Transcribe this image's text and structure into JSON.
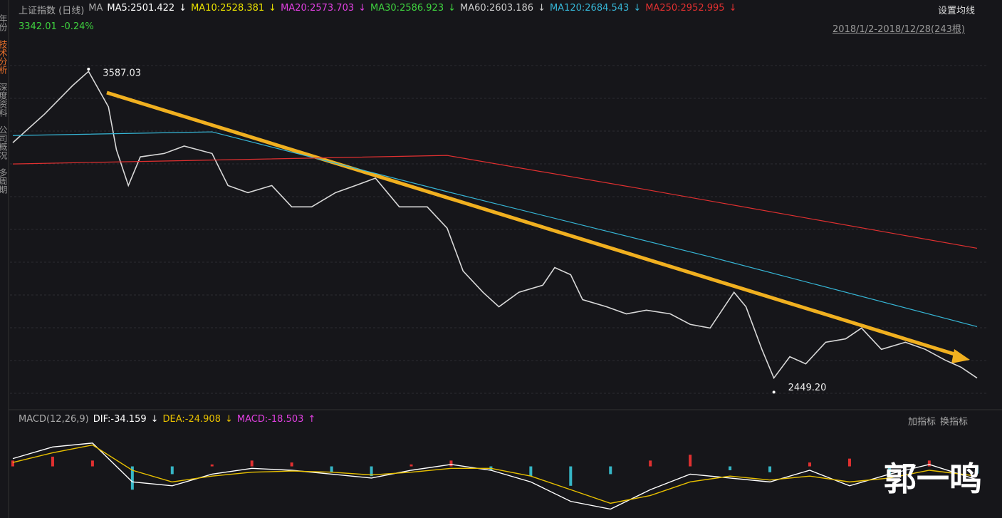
{
  "header": {
    "title": "上证指数 (日线)",
    "ma_label": "MA",
    "ma": [
      {
        "label": "MA5:2501.422",
        "arrow": "↓",
        "color": "#ffffff"
      },
      {
        "label": "MA10:2528.381",
        "arrow": "↓",
        "color": "#e8e000"
      },
      {
        "label": "MA20:2573.703",
        "arrow": "↓",
        "color": "#e040e0"
      },
      {
        "label": "MA30:2586.923",
        "arrow": "↓",
        "color": "#3fd23f"
      },
      {
        "label": "MA60:2603.186",
        "arrow": "↓",
        "color": "#cccccc"
      },
      {
        "label": "MA120:2684.543",
        "arrow": "↓",
        "color": "#36b6d6"
      },
      {
        "label": "MA250:2952.995",
        "arrow": "↓",
        "color": "#e03030"
      }
    ],
    "settings": "设置均线",
    "last": "3342.01",
    "change": "-0.24%",
    "range": "2018/1/2-2018/12/28(243根)"
  },
  "sidebar": [
    "年份",
    "技术分析",
    "深度资料",
    "公司概况",
    "多周期"
  ],
  "chart_data": [
    {
      "type": "line",
      "xlim": [
        0,
        242
      ],
      "ylim": [
        2400,
        3700
      ],
      "series": [
        {
          "color": "#d8d8d8",
          "x": [
            0,
            8,
            15,
            19,
            24,
            26,
            29,
            32,
            38,
            43,
            50,
            54,
            59,
            65,
            70,
            75,
            81,
            86,
            91,
            97,
            104,
            109,
            113,
            118,
            122,
            127,
            133,
            136,
            140,
            143,
            149,
            154,
            159,
            165,
            170,
            175,
            181,
            184,
            188,
            191,
            195,
            199,
            204,
            209,
            213,
            218,
            224,
            229,
            234,
            238,
            242
          ],
          "values": [
            3328,
            3429,
            3529,
            3579,
            3454,
            3303,
            3177,
            3278,
            3290,
            3316,
            3290,
            3177,
            3152,
            3177,
            3102,
            3102,
            3152,
            3177,
            3203,
            3102,
            3102,
            3027,
            2876,
            2801,
            2750,
            2801,
            2826,
            2888,
            2863,
            2775,
            2750,
            2725,
            2738,
            2725,
            2688,
            2675,
            2801,
            2750,
            2600,
            2499,
            2574,
            2549,
            2625,
            2637,
            2675,
            2600,
            2625,
            2600,
            2562,
            2537,
            2499
          ]
        },
        {
          "color": "#36b6d6",
          "x": [
            0,
            50,
            110,
            175,
            242
          ],
          "values": [
            3353,
            3366,
            3152,
            2926,
            2680
          ]
        },
        {
          "color": "#e03030",
          "x": [
            0,
            109,
            158,
            242
          ],
          "values": [
            3253,
            3283,
            3165,
            2956
          ]
        }
      ],
      "annotations": [
        {
          "text": "3587.03",
          "x": 19,
          "y": 3587.03
        },
        {
          "text": "2449.20",
          "x": 191,
          "y": 2449.2
        }
      ]
    },
    {
      "type": "bar",
      "title": "MACD(12,26,9)",
      "xlim": [
        0,
        242
      ],
      "ylim": [
        -120,
        100
      ],
      "up_color": "#e03030",
      "down_color": "#36b6c6",
      "legend": [
        {
          "label": "DIF:-34.159",
          "arrow": "↓",
          "color": "#ffffff"
        },
        {
          "label": "DEA:-24.908",
          "arrow": "↓",
          "color": "#e8c000"
        },
        {
          "label": "MACD:-18.503",
          "arrow": "↑",
          "color": "#e040e0"
        }
      ],
      "buttons": [
        "加指标",
        "换指标"
      ],
      "x": [
        0,
        10,
        20,
        30,
        40,
        50,
        60,
        70,
        80,
        90,
        100,
        110,
        120,
        130,
        140,
        150,
        160,
        170,
        180,
        190,
        200,
        210,
        220,
        230,
        242
      ],
      "values": [
        15,
        25,
        15,
        -60,
        -20,
        5,
        15,
        10,
        -15,
        -25,
        5,
        15,
        -10,
        -25,
        -50,
        -20,
        15,
        30,
        -10,
        -15,
        10,
        20,
        -30,
        15,
        -18.503
      ],
      "series": [
        {
          "color": "#ffffff",
          "values": [
            20,
            50,
            60,
            -40,
            -50,
            -20,
            -5,
            -10,
            -20,
            -30,
            -10,
            5,
            -10,
            -40,
            -90,
            -110,
            -60,
            -20,
            -30,
            -40,
            -10,
            -50,
            -20,
            5,
            -34.159
          ]
        },
        {
          "color": "#e8c000",
          "values": [
            10,
            35,
            55,
            -10,
            -40,
            -25,
            -15,
            -12,
            -15,
            -22,
            -15,
            -5,
            -5,
            -25,
            -60,
            -95,
            -75,
            -40,
            -25,
            -35,
            -25,
            -40,
            -30,
            -10,
            -24.908
          ]
        }
      ]
    }
  ],
  "watermark": "郭一鸣"
}
